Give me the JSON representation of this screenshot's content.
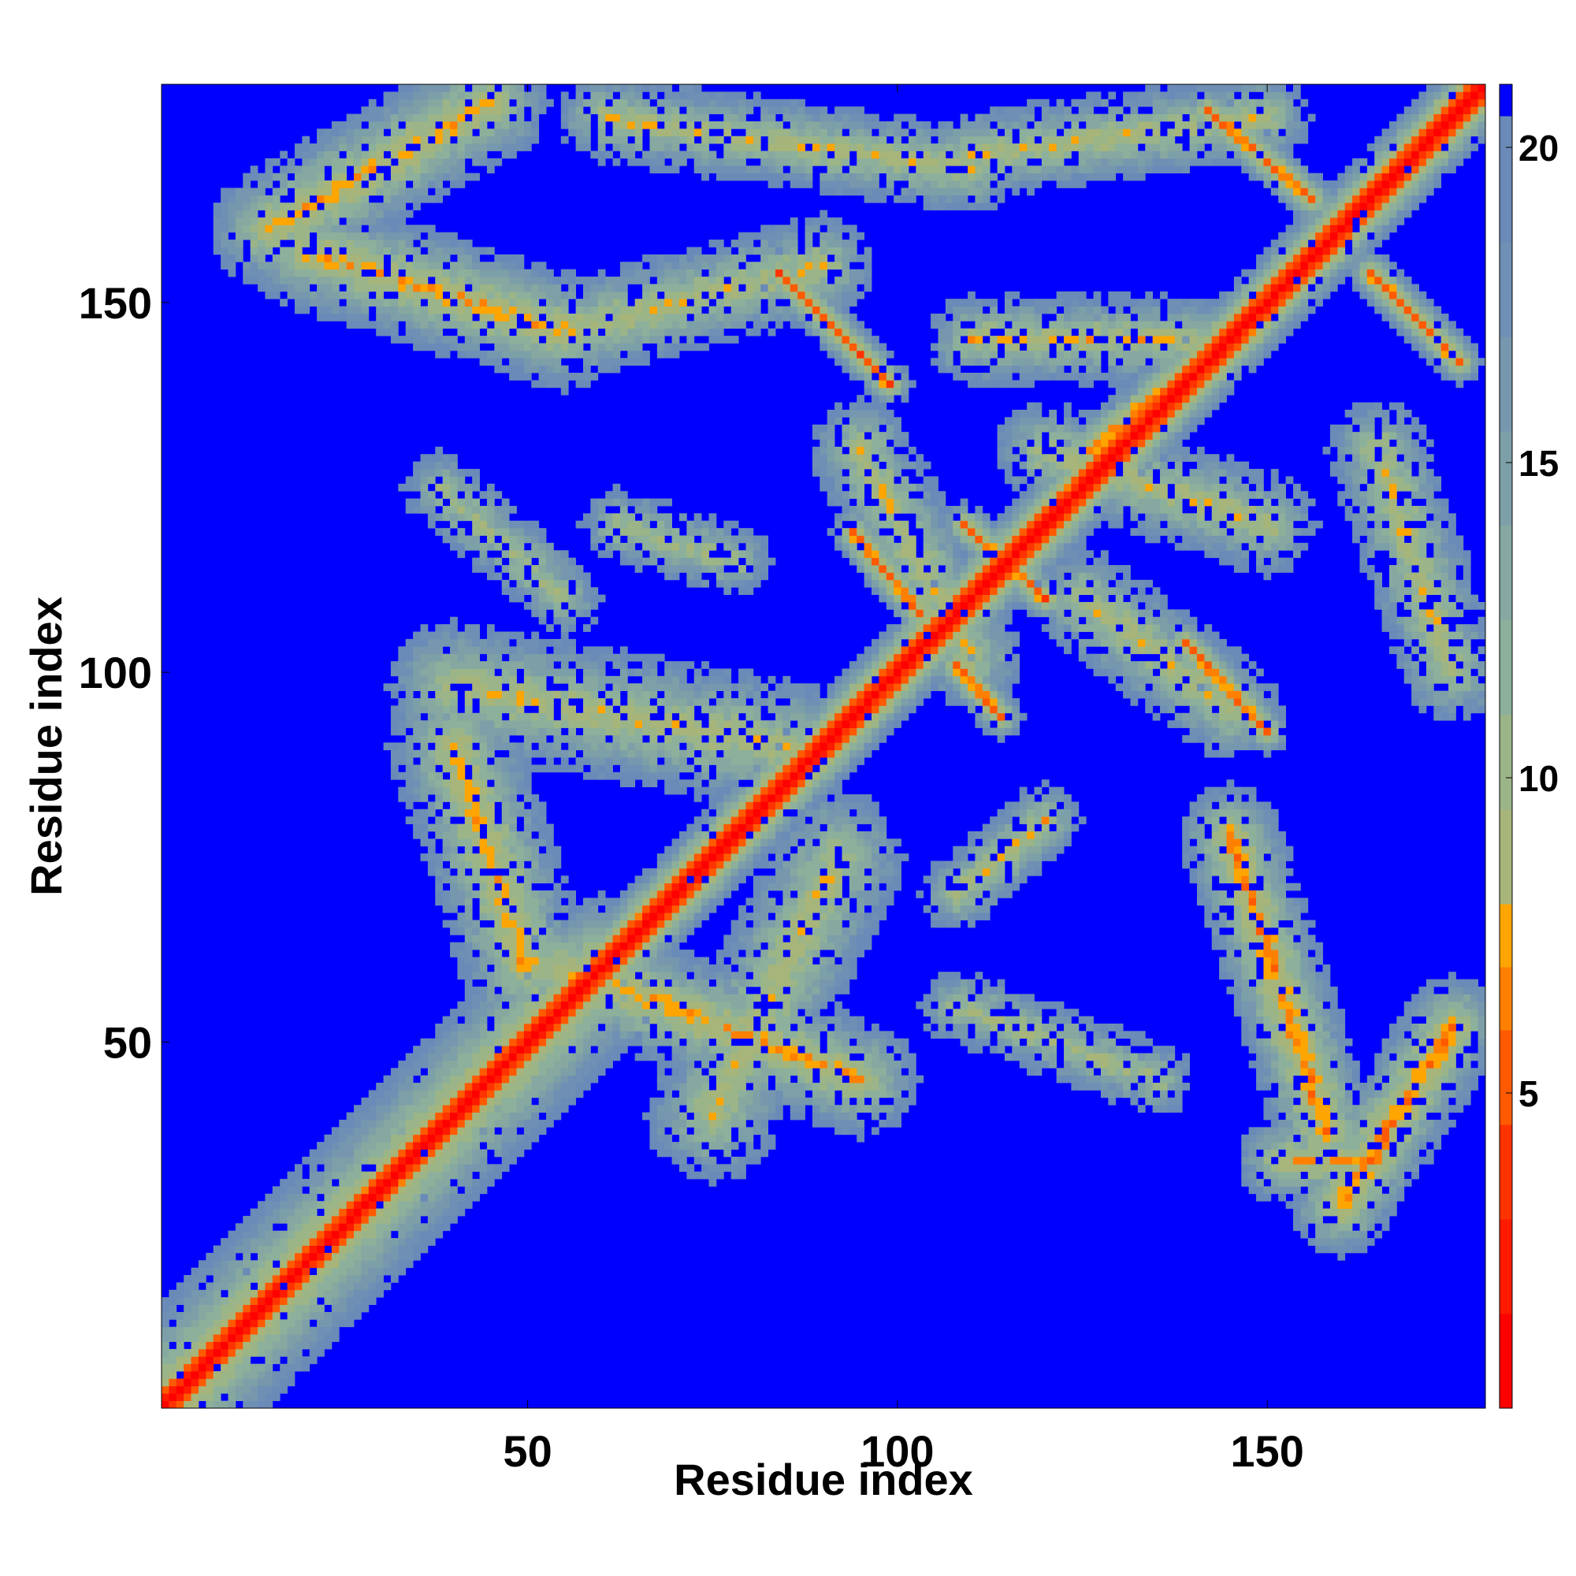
{
  "chart_data": {
    "type": "heatmap",
    "title": "",
    "xlabel": "Residue index",
    "ylabel": "Residue index",
    "n_residues": 179,
    "xlim": [
      1,
      179
    ],
    "ylim": [
      1,
      179
    ],
    "x_ticks": [
      50,
      100,
      150
    ],
    "y_ticks": [
      50,
      100,
      150
    ],
    "colorbar": {
      "range": [
        0,
        21
      ],
      "ticks": [
        5,
        10,
        15,
        20
      ],
      "levels": [
        {
          "min": 0,
          "max": 1.5,
          "color": "#ff0000"
        },
        {
          "min": 1.5,
          "max": 3,
          "color": "#ff1a00"
        },
        {
          "min": 3,
          "max": 4.5,
          "color": "#ff3300"
        },
        {
          "min": 4.5,
          "max": 6,
          "color": "#ff5a00"
        },
        {
          "min": 6,
          "max": 7,
          "color": "#ff8000"
        },
        {
          "min": 7,
          "max": 8,
          "color": "#ffa500"
        },
        {
          "min": 8,
          "max": 9.5,
          "color": "#a7b57a"
        },
        {
          "min": 9.5,
          "max": 11,
          "color": "#9bb488"
        },
        {
          "min": 11,
          "max": 12.5,
          "color": "#8cb09b"
        },
        {
          "min": 12.5,
          "max": 14,
          "color": "#86a8a0"
        },
        {
          "min": 14,
          "max": 15.5,
          "color": "#7d9fa8"
        },
        {
          "min": 15.5,
          "max": 17,
          "color": "#7697ad"
        },
        {
          "min": 17,
          "max": 18.5,
          "color": "#6f8fb4"
        },
        {
          "min": 18.5,
          "max": 20.5,
          "color": "#6a8ab8"
        },
        {
          "min": 20.5,
          "max": 21,
          "color": "#0000ff"
        }
      ]
    },
    "background_color": "#0000ff",
    "contacts": [
      {
        "x1": 1,
        "y1": 1,
        "x2": 179,
        "y2": 179,
        "min_value": 0,
        "width": 5,
        "noise": 0.15
      },
      {
        "x1": 1,
        "y1": 1,
        "x2": 60,
        "y2": 60,
        "min_value": 6,
        "width": 10,
        "noise": 0.25
      },
      {
        "x1": 142,
        "y1": 176,
        "x2": 156,
        "y2": 164,
        "min_value": 5,
        "width": 3,
        "noise": 0.3
      },
      {
        "x1": 164,
        "y1": 154,
        "x2": 176,
        "y2": 142,
        "min_value": 5,
        "width": 3,
        "noise": 0.3
      },
      {
        "x1": 84,
        "y1": 154,
        "x2": 99,
        "y2": 139,
        "min_value": 5,
        "width": 3,
        "noise": 0.3
      },
      {
        "x1": 94,
        "y1": 119,
        "x2": 103,
        "y2": 108,
        "min_value": 5,
        "width": 3,
        "noise": 0.3
      },
      {
        "x1": 109,
        "y1": 120,
        "x2": 120,
        "y2": 110,
        "min_value": 5,
        "width": 3,
        "noise": 0.3
      },
      {
        "x1": 108,
        "y1": 101,
        "x2": 114,
        "y2": 94,
        "min_value": 5,
        "width": 3,
        "noise": 0.3
      },
      {
        "x1": 139,
        "y1": 104,
        "x2": 150,
        "y2": 92,
        "min_value": 5,
        "width": 3,
        "noise": 0.3
      },
      {
        "x1": 126,
        "y1": 130,
        "x2": 138,
        "y2": 140,
        "min_value": 6,
        "width": 4,
        "noise": 0.35
      },
      {
        "x1": 15,
        "y1": 160,
        "x2": 45,
        "y2": 177,
        "min_value": 7,
        "width": 8,
        "noise": 0.55
      },
      {
        "x1": 20,
        "y1": 157,
        "x2": 55,
        "y2": 146,
        "min_value": 7,
        "width": 8,
        "noise": 0.55
      },
      {
        "x1": 55,
        "y1": 146,
        "x2": 90,
        "y2": 155,
        "min_value": 8,
        "width": 7,
        "noise": 0.6
      },
      {
        "x1": 60,
        "y1": 175,
        "x2": 110,
        "y2": 168,
        "min_value": 8,
        "width": 6,
        "noise": 0.65
      },
      {
        "x1": 110,
        "y1": 170,
        "x2": 150,
        "y2": 175,
        "min_value": 8,
        "width": 6,
        "noise": 0.65
      },
      {
        "x1": 40,
        "y1": 98,
        "x2": 85,
        "y2": 90,
        "min_value": 8,
        "width": 9,
        "noise": 0.6
      },
      {
        "x1": 40,
        "y1": 90,
        "x2": 50,
        "y2": 60,
        "min_value": 7,
        "width": 9,
        "noise": 0.55
      },
      {
        "x1": 55,
        "y1": 60,
        "x2": 95,
        "y2": 45,
        "min_value": 7,
        "width": 8,
        "noise": 0.6
      },
      {
        "x1": 75,
        "y1": 40,
        "x2": 92,
        "y2": 75,
        "min_value": 8,
        "width": 9,
        "noise": 0.6
      },
      {
        "x1": 145,
        "y1": 78,
        "x2": 158,
        "y2": 38,
        "min_value": 6,
        "width": 7,
        "noise": 0.55
      },
      {
        "x1": 160,
        "y1": 28,
        "x2": 175,
        "y2": 52,
        "min_value": 6,
        "width": 7,
        "noise": 0.55
      },
      {
        "x1": 152,
        "y1": 34,
        "x2": 165,
        "y2": 34,
        "min_value": 7,
        "width": 6,
        "noise": 0.55
      },
      {
        "x1": 95,
        "y1": 130,
        "x2": 110,
        "y2": 102,
        "min_value": 8,
        "width": 7,
        "noise": 0.7
      },
      {
        "x1": 120,
        "y1": 130,
        "x2": 150,
        "y2": 120,
        "min_value": 8,
        "width": 7,
        "noise": 0.7
      },
      {
        "x1": 125,
        "y1": 110,
        "x2": 145,
        "y2": 95,
        "min_value": 8,
        "width": 7,
        "noise": 0.7
      },
      {
        "x1": 110,
        "y1": 145,
        "x2": 140,
        "y2": 145,
        "min_value": 8,
        "width": 6,
        "noise": 0.7
      },
      {
        "x1": 165,
        "y1": 130,
        "x2": 175,
        "y2": 100,
        "min_value": 8,
        "width": 7,
        "noise": 0.7
      },
      {
        "x1": 108,
        "y1": 70,
        "x2": 120,
        "y2": 80,
        "min_value": 8,
        "width": 5,
        "noise": 0.75
      },
      {
        "x1": 108,
        "y1": 55,
        "x2": 135,
        "y2": 45,
        "min_value": 9,
        "width": 5,
        "noise": 0.8
      },
      {
        "x1": 62,
        "y1": 120,
        "x2": 78,
        "y2": 115,
        "min_value": 9,
        "width": 5,
        "noise": 0.8
      },
      {
        "x1": 38,
        "y1": 125,
        "x2": 55,
        "y2": 110,
        "min_value": 9,
        "width": 5,
        "noise": 0.85
      }
    ]
  }
}
